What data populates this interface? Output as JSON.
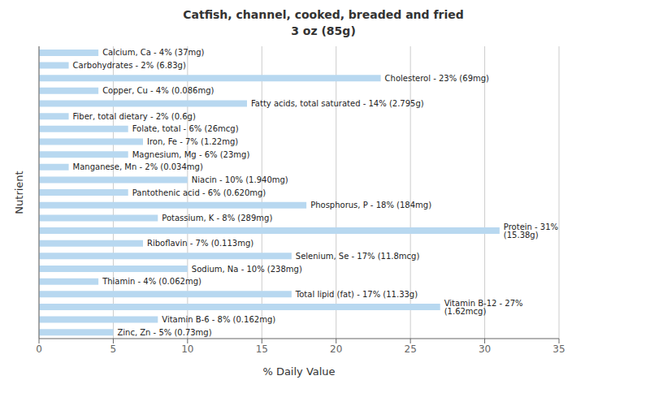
{
  "chart_data": {
    "type": "bar",
    "orientation": "horizontal",
    "title": "Catfish, channel, cooked, breaded and fried\n3 oz (85g)",
    "xlabel": "% Daily Value",
    "ylabel": "Nutrient",
    "categories": [
      "Calcium, Ca - 4% (37mg)",
      "Carbohydrates - 2% (6.83g)",
      "Cholesterol - 23% (69mg)",
      "Copper, Cu - 4% (0.086mg)",
      "Fatty acids, total saturated - 14% (2.795g)",
      "Fiber, total dietary - 2% (0.6g)",
      "Folate, total - 6% (26mcg)",
      "Iron, Fe - 7% (1.22mg)",
      "Magnesium, Mg - 6% (23mg)",
      "Manganese, Mn - 2% (0.034mg)",
      "Niacin - 10% (1.940mg)",
      "Pantothenic acid - 6% (0.620mg)",
      "Phosphorus, P - 18% (184mg)",
      "Potassium, K - 8% (289mg)",
      "Protein - 31% (15.38g)",
      "Riboflavin - 7% (0.113mg)",
      "Selenium, Se - 17% (11.8mcg)",
      "Sodium, Na - 10% (238mg)",
      "Thiamin - 4% (0.062mg)",
      "Total lipid (fat) - 17% (11.33g)",
      "Vitamin B-12 - 27% (1.62mcg)",
      "Vitamin B-6 - 8% (0.162mg)",
      "Zinc, Zn - 5% (0.73mg)"
    ],
    "values": [
      4,
      2,
      23,
      4,
      14,
      2,
      6,
      7,
      6,
      2,
      10,
      6,
      18,
      8,
      31,
      7,
      17,
      10,
      4,
      17,
      27,
      8,
      5
    ],
    "color": "#b8d8f0",
    "xlim": [
      0,
      35
    ],
    "xticks": [
      0,
      5,
      10,
      15,
      20,
      25,
      30,
      35
    ],
    "grid": true,
    "tick_labels": "x"
  }
}
